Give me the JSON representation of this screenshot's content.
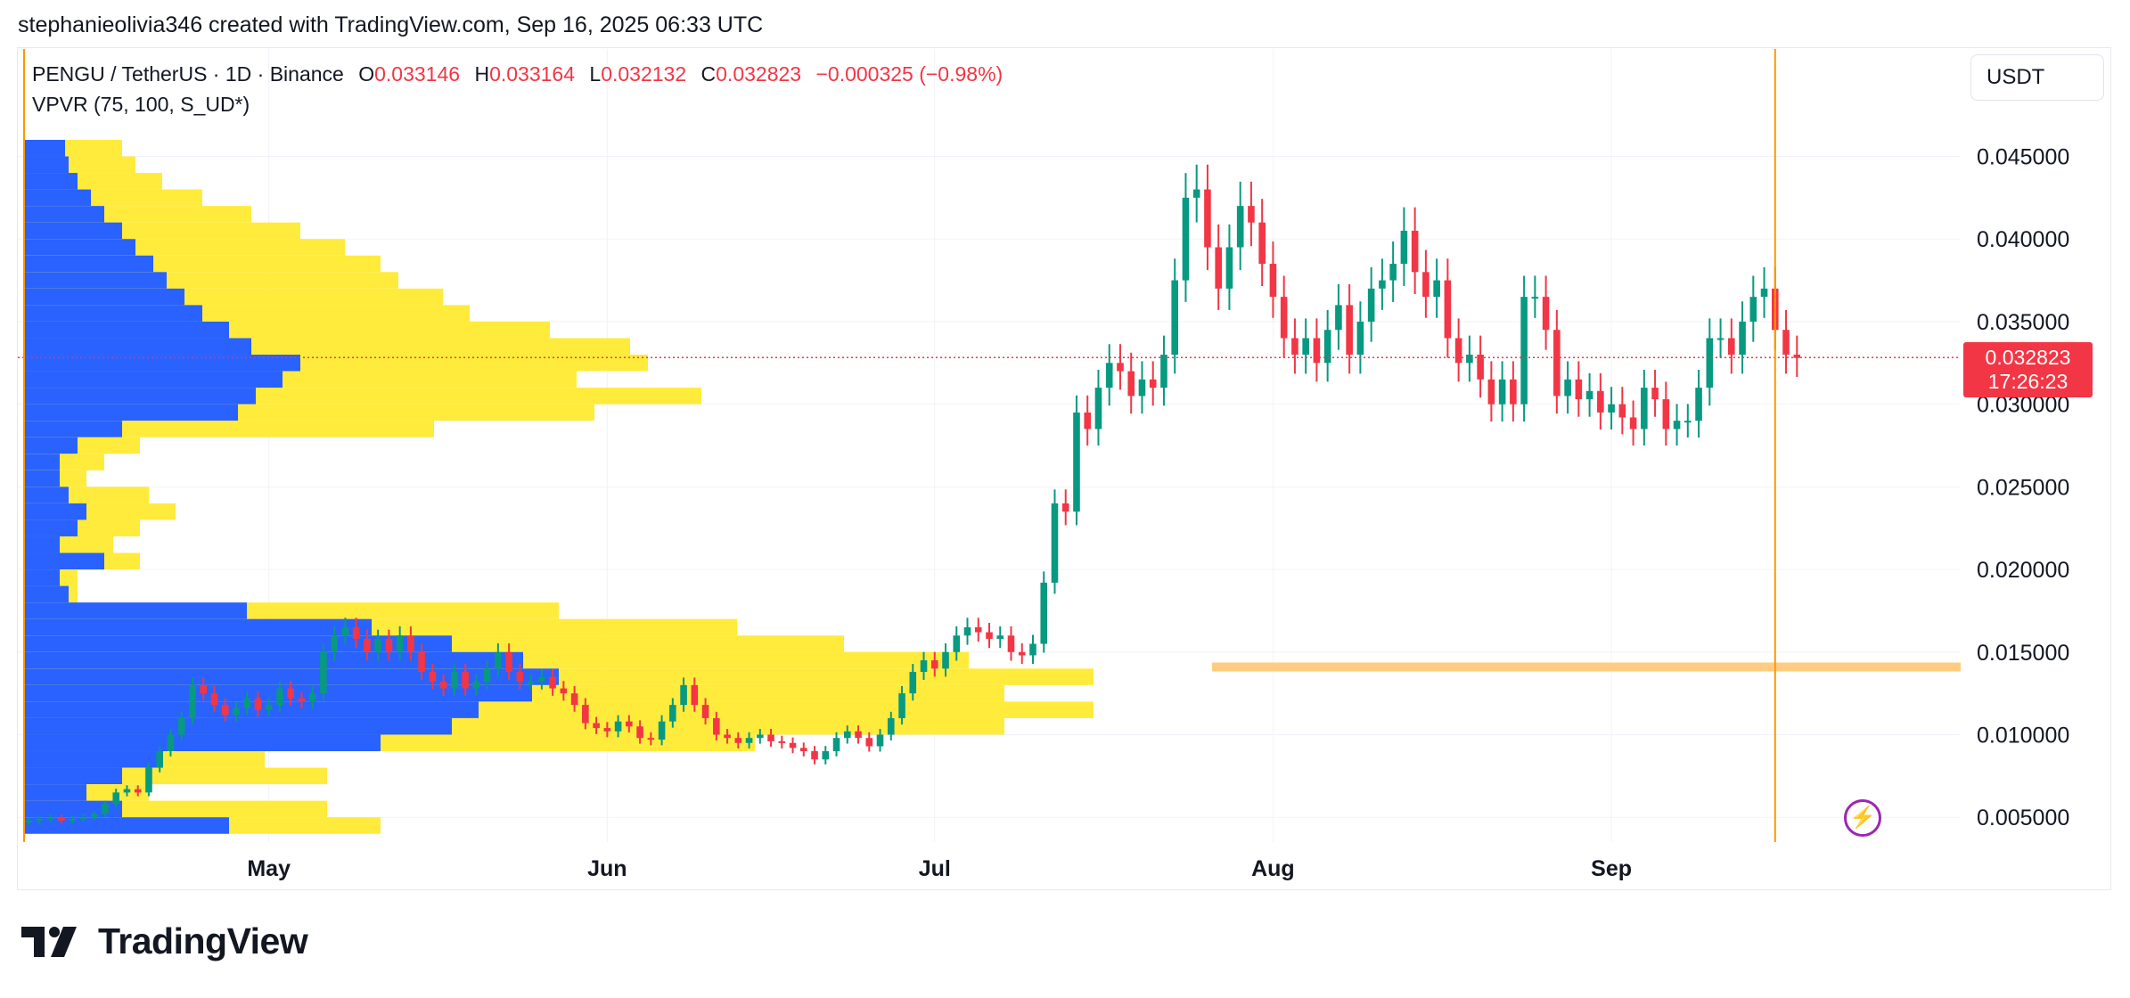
{
  "credit": "stephanieolivia346 created with TradingView.com, Sep 16, 2025 06:33 UTC",
  "legend": {
    "symbol": "PENGU / TetherUS · 1D · Binance",
    "o_label": "O",
    "o_value": "0.033146",
    "h_label": "H",
    "h_value": "0.033164",
    "l_label": "L",
    "l_value": "0.032132",
    "c_label": "C",
    "c_value": "0.032823",
    "change": "−0.000325 (−0.98%)",
    "indicator": "VPVR (75, 100, S_UD*)"
  },
  "currency_button": "USDT",
  "last_price": {
    "price": "0.032823",
    "countdown": "17:26:23"
  },
  "brand": "TradingView",
  "icons": {
    "bolt": "lightning-bolt-icon",
    "logo": "tradingview-logo-icon"
  },
  "colors": {
    "up": "#089981",
    "down": "#f23645",
    "vp_up": "#2962ff",
    "vp_down": "#ffeb3b",
    "hline": "#ffcc80",
    "vline": "#ff9800",
    "price_line": "#f23645",
    "grid": "#f0f3fa"
  },
  "chart_data": {
    "type": "candlestick",
    "title": "PENGU / TetherUS · 1D · Binance",
    "x_range": [
      "2025-04-08",
      "2025-10-03"
    ],
    "x_ticks": [
      {
        "label": "May",
        "date": "2025-05-01"
      },
      {
        "label": "Jun",
        "date": "2025-06-01"
      },
      {
        "label": "Jul",
        "date": "2025-07-01"
      },
      {
        "label": "Aug",
        "date": "2025-08-01"
      },
      {
        "label": "Sep",
        "date": "2025-09-01"
      }
    ],
    "y_range": [
      0.0035,
      0.0515
    ],
    "y_ticks": [
      "0.005000",
      "0.010000",
      "0.015000",
      "0.020000",
      "0.025000",
      "0.030000",
      "0.035000",
      "0.040000",
      "0.045000"
    ],
    "last_close": 0.032823,
    "horizontal_level": 0.0141,
    "vertical_marker_date": "2025-09-16",
    "candles_close": [
      0.0048,
      0.0049,
      0.005,
      0.0048,
      0.0049,
      0.005,
      0.0052,
      0.0058,
      0.0065,
      0.0067,
      0.0065,
      0.008,
      0.009,
      0.01,
      0.011,
      0.013,
      0.0125,
      0.0118,
      0.0112,
      0.0116,
      0.0122,
      0.0115,
      0.0118,
      0.0128,
      0.0122,
      0.012,
      0.0125,
      0.015,
      0.016,
      0.0165,
      0.0158,
      0.015,
      0.0158,
      0.015,
      0.016,
      0.015,
      0.0138,
      0.0132,
      0.0128,
      0.0138,
      0.0128,
      0.0132,
      0.014,
      0.015,
      0.0138,
      0.0132,
      0.0132,
      0.0135,
      0.0128,
      0.0125,
      0.0118,
      0.0107,
      0.0104,
      0.0102,
      0.0108,
      0.0105,
      0.0098,
      0.0097,
      0.0108,
      0.0118,
      0.013,
      0.0118,
      0.011,
      0.01,
      0.0098,
      0.0095,
      0.0098,
      0.01,
      0.0096,
      0.0095,
      0.0092,
      0.009,
      0.0085,
      0.009,
      0.0098,
      0.0102,
      0.0098,
      0.0093,
      0.01,
      0.011,
      0.0125,
      0.0138,
      0.0145,
      0.014,
      0.015,
      0.016,
      0.0165,
      0.0162,
      0.0158,
      0.016,
      0.015,
      0.0148,
      0.0155,
      0.0192,
      0.024,
      0.0235,
      0.0295,
      0.0285,
      0.031,
      0.0325,
      0.032,
      0.0305,
      0.0315,
      0.031,
      0.033,
      0.0375,
      0.0425,
      0.043,
      0.0395,
      0.037,
      0.0395,
      0.042,
      0.041,
      0.0385,
      0.0365,
      0.034,
      0.033,
      0.034,
      0.0325,
      0.0345,
      0.036,
      0.033,
      0.035,
      0.037,
      0.0375,
      0.0385,
      0.0405,
      0.038,
      0.0365,
      0.0375,
      0.034,
      0.0325,
      0.033,
      0.0315,
      0.03,
      0.0315,
      0.03,
      0.0365,
      0.0365,
      0.0345,
      0.0305,
      0.0315,
      0.0303,
      0.0308,
      0.0295,
      0.03,
      0.0292,
      0.0285,
      0.031,
      0.0303,
      0.0285,
      0.029,
      0.029,
      0.031,
      0.034,
      0.034,
      0.033,
      0.035,
      0.0365,
      0.037,
      0.0345,
      0.033,
      0.0328
    ]
  }
}
